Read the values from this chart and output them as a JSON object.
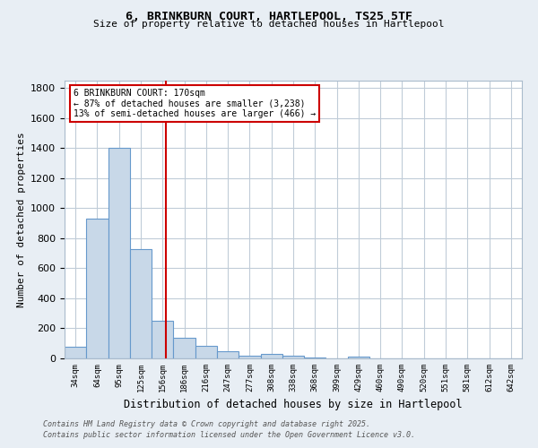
{
  "title1": "6, BRINKBURN COURT, HARTLEPOOL, TS25 5TF",
  "title2": "Size of property relative to detached houses in Hartlepool",
  "xlabel": "Distribution of detached houses by size in Hartlepool",
  "ylabel": "Number of detached properties",
  "bin_labels": [
    "34sqm",
    "64sqm",
    "95sqm",
    "125sqm",
    "156sqm",
    "186sqm",
    "216sqm",
    "247sqm",
    "277sqm",
    "308sqm",
    "338sqm",
    "368sqm",
    "399sqm",
    "429sqm",
    "460sqm",
    "490sqm",
    "520sqm",
    "551sqm",
    "581sqm",
    "612sqm",
    "642sqm"
  ],
  "bar_values": [
    80,
    930,
    1400,
    730,
    250,
    140,
    85,
    50,
    20,
    30,
    15,
    8,
    0,
    10,
    0,
    0,
    0,
    0,
    0,
    0,
    0
  ],
  "bar_color": "#c8d8e8",
  "bar_edge_color": "#6699cc",
  "vline_x": 4.67,
  "vline_color": "#cc0000",
  "annotation_text": "6 BRINKBURN COURT: 170sqm\n← 87% of detached houses are smaller (3,238)\n13% of semi-detached houses are larger (466) →",
  "annotation_box_color": "#cc0000",
  "annotation_text_color": "black",
  "ylim": [
    0,
    1850
  ],
  "yticks": [
    0,
    200,
    400,
    600,
    800,
    1000,
    1200,
    1400,
    1600,
    1800
  ],
  "footer1": "Contains HM Land Registry data © Crown copyright and database right 2025.",
  "footer2": "Contains public sector information licensed under the Open Government Licence v3.0.",
  "bg_color": "#e8eef4",
  "plot_bg_color": "#ffffff",
  "grid_color": "#c0ccd8"
}
